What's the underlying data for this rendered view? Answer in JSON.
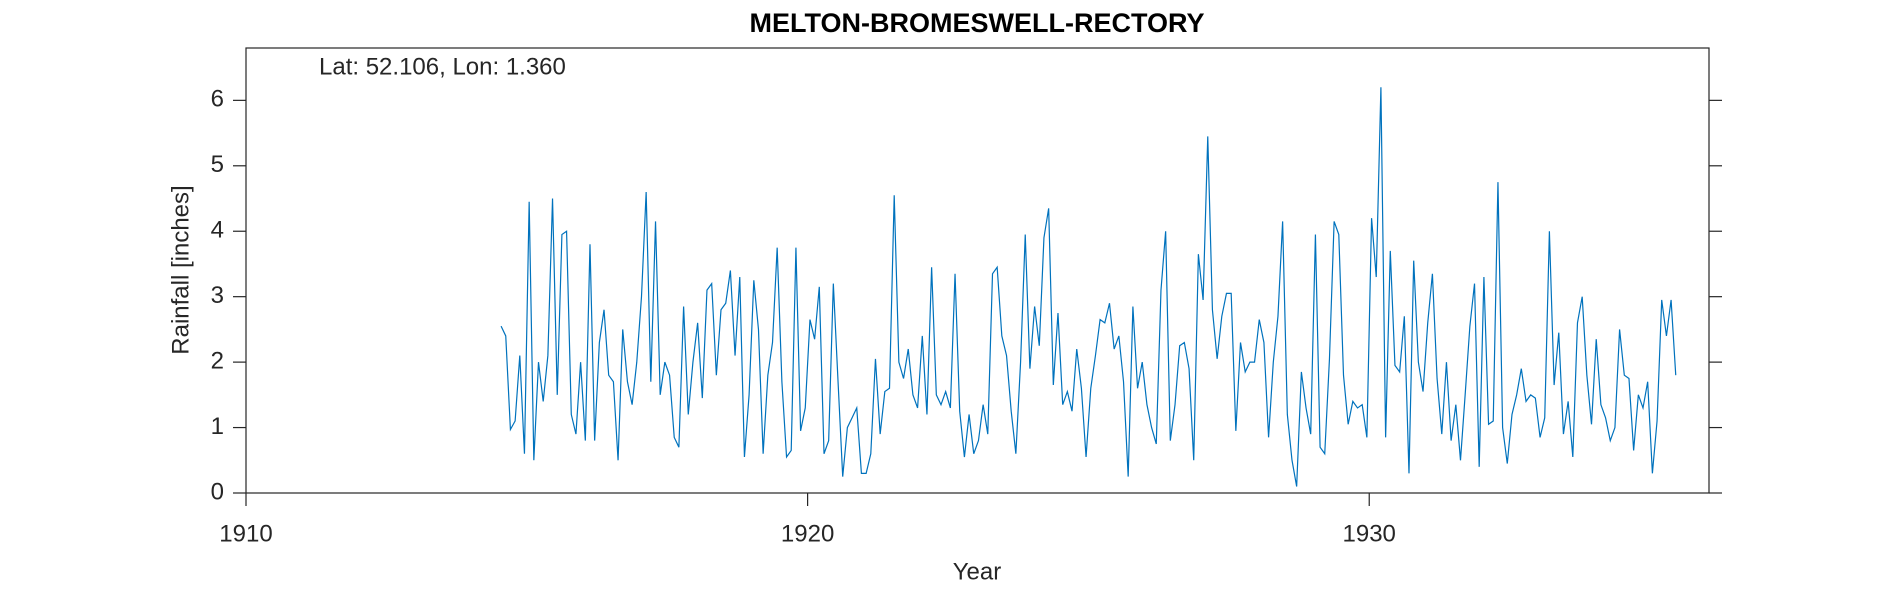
{
  "chart_data": {
    "type": "line",
    "title": "MELTON-BROMESWELL-RECTORY",
    "annotation": "Lat: 52.106, Lon: 1.360",
    "xlabel": "Year",
    "ylabel": "Rainfall [inches]",
    "xlim": [
      1910,
      1936.05
    ],
    "ylim": [
      0,
      6.8
    ],
    "xticks": [
      1910,
      1920,
      1930
    ],
    "yticks": [
      0,
      1,
      2,
      3,
      4,
      5,
      6
    ],
    "grid": false,
    "series": [
      {
        "color": "#0072bd",
        "x": [
          1914.542,
          1914.625,
          1914.708,
          1914.792,
          1914.875,
          1914.958,
          1915.042,
          1915.125,
          1915.208,
          1915.292,
          1915.375,
          1915.458,
          1915.542,
          1915.625,
          1915.708,
          1915.792,
          1915.875,
          1915.958,
          1916.042,
          1916.125,
          1916.208,
          1916.292,
          1916.375,
          1916.458,
          1916.542,
          1916.625,
          1916.708,
          1916.792,
          1916.875,
          1916.958,
          1917.042,
          1917.125,
          1917.208,
          1917.292,
          1917.375,
          1917.458,
          1917.542,
          1917.625,
          1917.708,
          1917.792,
          1917.875,
          1917.958,
          1918.042,
          1918.125,
          1918.208,
          1918.292,
          1918.375,
          1918.458,
          1918.542,
          1918.625,
          1918.708,
          1918.792,
          1918.875,
          1918.958,
          1919.042,
          1919.125,
          1919.208,
          1919.292,
          1919.375,
          1919.458,
          1919.542,
          1919.625,
          1919.708,
          1919.792,
          1919.875,
          1919.958,
          1920.042,
          1920.125,
          1920.208,
          1920.292,
          1920.375,
          1920.458,
          1920.542,
          1920.625,
          1920.708,
          1920.792,
          1920.875,
          1920.958,
          1921.042,
          1921.125,
          1921.208,
          1921.292,
          1921.375,
          1921.458,
          1921.542,
          1921.625,
          1921.708,
          1921.792,
          1921.875,
          1921.958,
          1922.042,
          1922.125,
          1922.208,
          1922.292,
          1922.375,
          1922.458,
          1922.542,
          1922.625,
          1922.708,
          1922.792,
          1922.875,
          1922.958,
          1923.042,
          1923.125,
          1923.208,
          1923.292,
          1923.375,
          1923.458,
          1923.542,
          1923.625,
          1923.708,
          1923.792,
          1923.875,
          1923.958,
          1924.042,
          1924.125,
          1924.208,
          1924.292,
          1924.375,
          1924.458,
          1924.542,
          1924.625,
          1924.708,
          1924.792,
          1924.875,
          1924.958,
          1925.042,
          1925.125,
          1925.208,
          1925.292,
          1925.375,
          1925.458,
          1925.542,
          1925.625,
          1925.708,
          1925.792,
          1925.875,
          1925.958,
          1926.042,
          1926.125,
          1926.208,
          1926.292,
          1926.375,
          1926.458,
          1926.542,
          1926.625,
          1926.708,
          1926.792,
          1926.875,
          1926.958,
          1927.042,
          1927.125,
          1927.208,
          1927.292,
          1927.375,
          1927.458,
          1927.542,
          1927.625,
          1927.708,
          1927.792,
          1927.875,
          1927.958,
          1928.042,
          1928.125,
          1928.208,
          1928.292,
          1928.375,
          1928.458,
          1928.542,
          1928.625,
          1928.708,
          1928.792,
          1928.875,
          1928.958,
          1929.042,
          1929.125,
          1929.208,
          1929.292,
          1929.375,
          1929.458,
          1929.542,
          1929.625,
          1929.708,
          1929.792,
          1929.875,
          1929.958,
          1930.042,
          1930.125,
          1930.208,
          1930.292,
          1930.375,
          1930.458,
          1930.542,
          1930.625,
          1930.708,
          1930.792,
          1930.875,
          1930.958,
          1931.042,
          1931.125,
          1931.208,
          1931.292,
          1931.375,
          1931.458,
          1931.542,
          1931.625,
          1931.708,
          1931.792,
          1931.875,
          1931.958,
          1932.042,
          1932.125,
          1932.208,
          1932.292,
          1932.375,
          1932.458,
          1932.542,
          1932.625,
          1932.708,
          1932.792,
          1932.875,
          1932.958,
          1933.042,
          1933.125,
          1933.208,
          1933.292,
          1933.375,
          1933.458,
          1933.542,
          1933.625,
          1933.708,
          1933.792,
          1933.875,
          1933.958,
          1934.042,
          1934.125,
          1934.208,
          1934.292,
          1934.375,
          1934.458,
          1934.542,
          1934.625,
          1934.708,
          1934.792,
          1934.875,
          1934.958,
          1935.042,
          1935.125,
          1935.208,
          1935.292,
          1935.375,
          1935.458
        ],
        "values": [
          2.55,
          2.4,
          0.97,
          1.1,
          2.1,
          0.6,
          4.45,
          0.5,
          2.0,
          1.4,
          2.1,
          4.5,
          1.5,
          3.95,
          4.0,
          1.2,
          0.9,
          2.0,
          0.8,
          3.8,
          0.8,
          2.3,
          2.8,
          1.8,
          1.7,
          0.5,
          2.5,
          1.7,
          1.35,
          2.0,
          3.0,
          4.6,
          1.7,
          4.15,
          1.5,
          2.0,
          1.8,
          0.85,
          0.7,
          2.85,
          1.2,
          2.0,
          2.6,
          1.45,
          3.1,
          3.2,
          1.8,
          2.8,
          2.9,
          3.4,
          2.1,
          3.3,
          0.55,
          1.5,
          3.25,
          2.5,
          0.6,
          1.8,
          2.3,
          3.75,
          1.7,
          0.55,
          0.65,
          3.75,
          0.95,
          1.3,
          2.65,
          2.35,
          3.15,
          0.6,
          0.8,
          3.2,
          1.7,
          0.25,
          1.0,
          1.15,
          1.3,
          0.3,
          0.3,
          0.6,
          2.05,
          0.9,
          1.55,
          1.6,
          4.55,
          2.0,
          1.75,
          2.2,
          1.5,
          1.3,
          2.4,
          1.2,
          3.45,
          1.5,
          1.35,
          1.55,
          1.3,
          3.35,
          1.25,
          0.55,
          1.2,
          0.6,
          0.8,
          1.35,
          0.9,
          3.35,
          3.45,
          2.4,
          2.1,
          1.25,
          0.6,
          2.0,
          3.95,
          1.9,
          2.85,
          2.25,
          3.9,
          4.35,
          1.65,
          2.75,
          1.35,
          1.55,
          1.25,
          2.2,
          1.6,
          0.55,
          1.6,
          2.1,
          2.65,
          2.6,
          2.9,
          2.2,
          2.4,
          1.7,
          0.25,
          2.85,
          1.6,
          2.0,
          1.35,
          1.0,
          0.75,
          3.1,
          4.0,
          0.8,
          1.35,
          2.25,
          2.3,
          1.9,
          0.5,
          3.65,
          2.95,
          5.45,
          2.8,
          2.05,
          2.7,
          3.05,
          3.05,
          0.95,
          2.3,
          1.85,
          2.0,
          2.0,
          2.65,
          2.3,
          0.85,
          2.0,
          2.7,
          4.15,
          1.2,
          0.5,
          0.1,
          1.85,
          1.3,
          0.9,
          3.95,
          0.7,
          0.6,
          2.05,
          4.15,
          3.95,
          1.8,
          1.05,
          1.4,
          1.3,
          1.35,
          0.85,
          4.2,
          3.3,
          6.2,
          0.85,
          3.7,
          1.95,
          1.85,
          2.7,
          0.3,
          3.55,
          2.0,
          1.55,
          2.6,
          3.35,
          1.75,
          0.9,
          2.0,
          0.8,
          1.35,
          0.5,
          1.5,
          2.55,
          3.2,
          0.4,
          3.3,
          1.05,
          1.1,
          4.75,
          1.0,
          0.45,
          1.2,
          1.5,
          1.9,
          1.4,
          1.5,
          1.45,
          0.85,
          1.15,
          4.0,
          1.65,
          2.45,
          0.9,
          1.4,
          0.55,
          2.6,
          3.0,
          1.8,
          1.05,
          2.35,
          1.35,
          1.15,
          0.8,
          1.0,
          2.5,
          1.8,
          1.75,
          0.65,
          1.5,
          1.3,
          1.7,
          0.3,
          1.1,
          2.95,
          2.4,
          2.95,
          1.8
        ]
      }
    ]
  }
}
